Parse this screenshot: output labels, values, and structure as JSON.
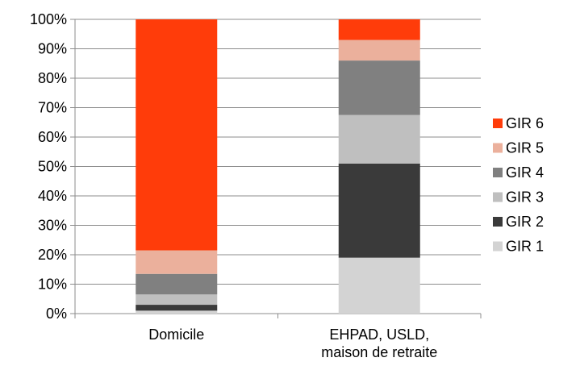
{
  "chart_data": {
    "type": "bar",
    "stacked": true,
    "categories": [
      "Domicile",
      "EHPAD, USLD, maison de retraite"
    ],
    "category_label_lines": [
      [
        "Domicile"
      ],
      [
        "EHPAD, USLD,",
        "maison de retraite"
      ]
    ],
    "series": [
      {
        "name": "GIR 1",
        "color": "#d3d3d3",
        "values": [
          1,
          19
        ]
      },
      {
        "name": "GIR 2",
        "color": "#3a3a3a",
        "values": [
          2,
          32
        ]
      },
      {
        "name": "GIR 3",
        "color": "#bfbfbf",
        "values": [
          3.5,
          16.5
        ]
      },
      {
        "name": "GIR 4",
        "color": "#808080",
        "values": [
          7,
          18.5
        ]
      },
      {
        "name": "GIR 5",
        "color": "#ebb09c",
        "values": [
          8,
          7
        ]
      },
      {
        "name": "GIR 6",
        "color": "#ff3c0a",
        "values": [
          78.5,
          7
        ]
      }
    ],
    "ylim": [
      0,
      100
    ],
    "yticks": [
      "0%",
      "10%",
      "20%",
      "30%",
      "40%",
      "50%",
      "60%",
      "70%",
      "80%",
      "90%",
      "100%"
    ],
    "grid": true,
    "legend_position": "right",
    "legend_order": [
      "GIR 6",
      "GIR 5",
      "GIR 4",
      "GIR 3",
      "GIR 2",
      "GIR 1"
    ],
    "xlabel": "",
    "ylabel": "",
    "title": ""
  }
}
